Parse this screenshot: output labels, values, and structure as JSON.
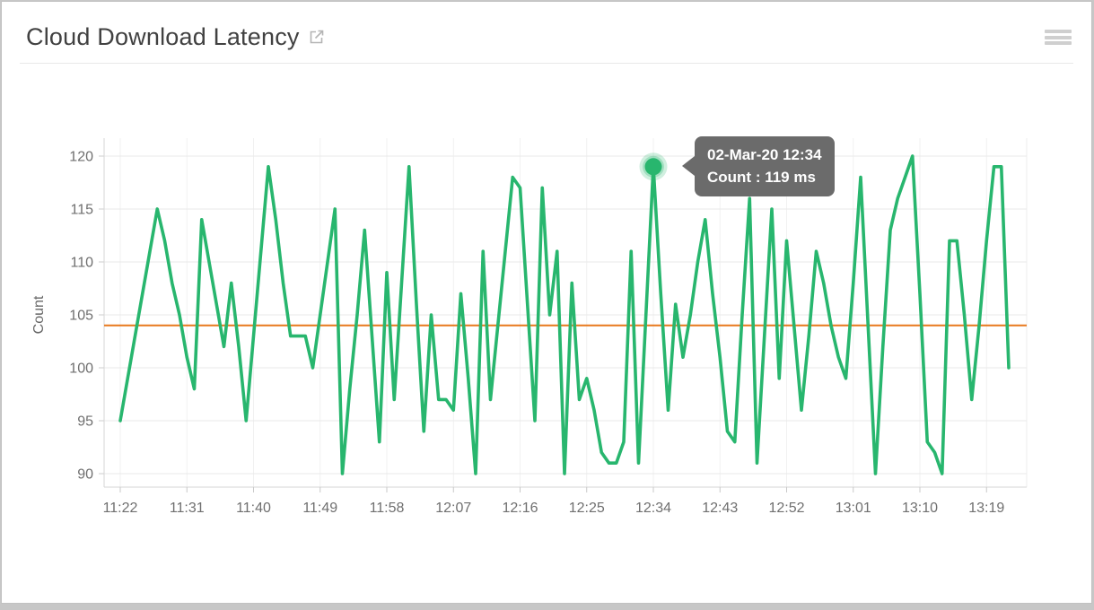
{
  "header": {
    "title": "Cloud Download Latency",
    "open_in_new_icon": "open-in-new",
    "menu_icon": "hamburger-menu"
  },
  "chart_data": {
    "type": "line",
    "title": "Cloud Download Latency",
    "ylabel": "Count",
    "unit": "ms",
    "ylim": [
      90,
      120
    ],
    "y_ticks": [
      90,
      95,
      100,
      105,
      110,
      115,
      120
    ],
    "grid": true,
    "legend_position": "none",
    "x_start": "11:22",
    "x_end": "13:22",
    "interval_minutes": 1,
    "x_tick_every": 9,
    "x_tick_labels": [
      "11:22",
      "11:31",
      "11:40",
      "11:49",
      "11:58",
      "12:07",
      "12:16",
      "12:25",
      "12:34",
      "12:43",
      "12:52",
      "13:01",
      "13:10",
      "13:19"
    ],
    "series": [
      {
        "name": "Count",
        "color": "#28b66e",
        "values": [
          95,
          99,
          103,
          107,
          111,
          115,
          112,
          108,
          105,
          101,
          98,
          114,
          110,
          106,
          102,
          108,
          102,
          95,
          103,
          111,
          119,
          114,
          108,
          103,
          103,
          103,
          100,
          105,
          110,
          115,
          90,
          98,
          105,
          113,
          103,
          93,
          109,
          97,
          108,
          119,
          106,
          94,
          105,
          97,
          97,
          96,
          107,
          99,
          90,
          111,
          97,
          104,
          111,
          118,
          117,
          106,
          95,
          117,
          105,
          111,
          90,
          108,
          97,
          99,
          96,
          92,
          91,
          91,
          93,
          111,
          91,
          105,
          119,
          107,
          96,
          106,
          101,
          105,
          110,
          114,
          107,
          101,
          94,
          93,
          105,
          116,
          91,
          103,
          115,
          99,
          112,
          104,
          96,
          103,
          111,
          108,
          104,
          101,
          99,
          108,
          118,
          104,
          90,
          102,
          113,
          116,
          118,
          120,
          107,
          93,
          92,
          90,
          112,
          112,
          105,
          97,
          104,
          112,
          119,
          119,
          100
        ]
      }
    ],
    "threshold_line": {
      "value": 104,
      "color": "#e8791d"
    },
    "highlight_point": {
      "index": 72,
      "time": "12:34",
      "value": 119
    },
    "tooltip": {
      "line1": "02-Mar-20 12:34",
      "line2": "Count : 119 ms"
    }
  },
  "colors": {
    "series_green": "#28b66e",
    "threshold_orange": "#e8791d",
    "tooltip_bg": "#6b6b6b",
    "axis_text": "#6f6f6f",
    "gridline": "#e9e9e9"
  }
}
